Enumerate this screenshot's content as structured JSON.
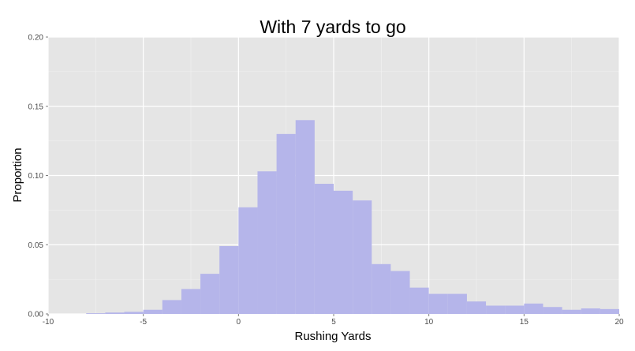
{
  "chart_data": {
    "type": "bar",
    "title": "With 7 yards to go",
    "xlabel": "Rushing Yards",
    "ylabel": "Proportion",
    "xlim": [
      -10,
      20
    ],
    "ylim": [
      0,
      0.2
    ],
    "x_ticks": [
      -10,
      -5,
      0,
      5,
      10,
      15,
      20
    ],
    "x_tick_labels": [
      "-10",
      "-5",
      "0",
      "5",
      "10",
      "15",
      "20"
    ],
    "y_ticks": [
      0,
      0.05,
      0.1,
      0.15,
      0.2
    ],
    "y_tick_labels": [
      "0.00",
      "0.05",
      "0.10",
      "0.15",
      "0.20"
    ],
    "bin_width": 1,
    "bin_starts": [
      -8,
      -7,
      -6,
      -5,
      -4,
      -3,
      -2,
      -1,
      0,
      1,
      2,
      3,
      4,
      5,
      6,
      7,
      8,
      9,
      10,
      11,
      12,
      13,
      14,
      15,
      16,
      17,
      18,
      19
    ],
    "values": [
      0.0005,
      0.001,
      0.0015,
      0.003,
      0.01,
      0.018,
      0.029,
      0.049,
      0.077,
      0.103,
      0.13,
      0.14,
      0.094,
      0.089,
      0.082,
      0.036,
      0.031,
      0.019,
      0.0145,
      0.0145,
      0.009,
      0.006,
      0.006,
      0.0075,
      0.005,
      0.003,
      0.004,
      0.0035
    ],
    "grid": true,
    "colors": {
      "panel": "#e5e5e5",
      "grid_major": "#ffffff",
      "grid_minor": "#f2f2f2",
      "bar": "#b5b5ea"
    }
  }
}
